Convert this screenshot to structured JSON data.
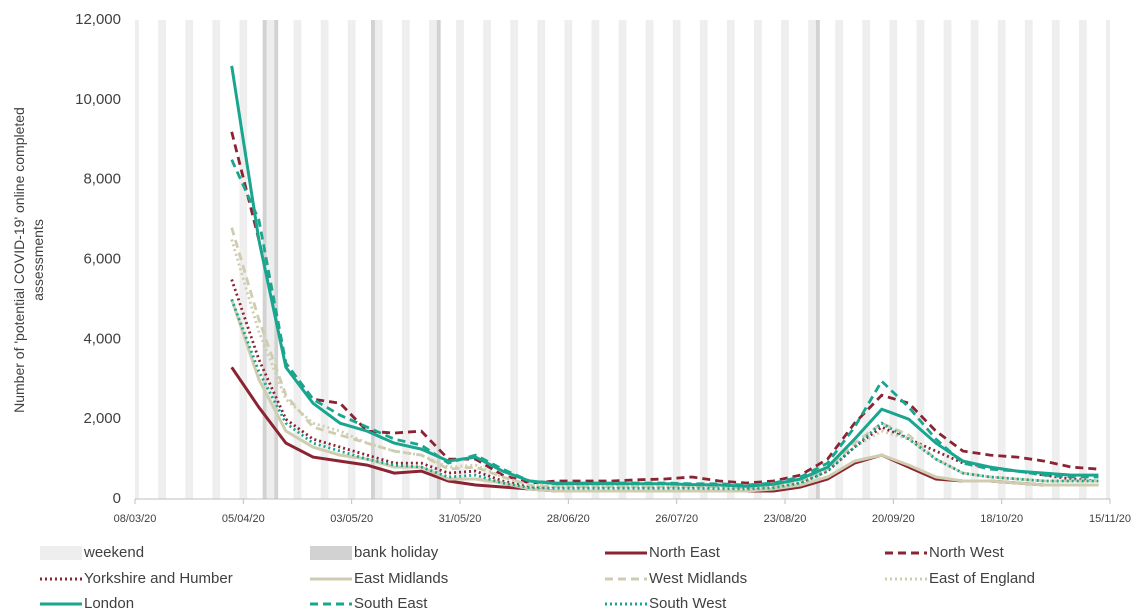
{
  "chart_data": {
    "type": "line",
    "y_label": "Number of 'potential COVID-19' online completed assessments",
    "xlim": [
      "08/03/20",
      "15/11/20"
    ],
    "xticks": [
      "08/03/20",
      "05/04/20",
      "03/05/20",
      "31/05/20",
      "28/06/20",
      "26/07/20",
      "23/08/20",
      "20/09/20",
      "18/10/20",
      "15/11/20"
    ],
    "ylim": [
      0,
      12000
    ],
    "yticks": [
      0,
      {
        "value": 2000,
        "label": "2,000"
      },
      {
        "value": 4000,
        "label": "4,000"
      },
      {
        "value": 6000,
        "label": "6,000"
      },
      {
        "value": 8000,
        "label": "8,000"
      },
      {
        "value": 10000,
        "label": "10,000"
      },
      {
        "value": 12000,
        "label": "12,000"
      }
    ],
    "shading": [
      {
        "name": "weekend",
        "color": "#eeeeee",
        "days": [
          6,
          0
        ]
      },
      {
        "name": "bank holiday",
        "color": "#d2d2d2",
        "dates": [
          "10/04/20",
          "13/04/20",
          "08/05/20",
          "25/05/20",
          "31/08/20"
        ]
      }
    ],
    "x": [
      "02/04/20",
      "09/04/20",
      "16/04/20",
      "23/04/20",
      "30/04/20",
      "07/05/20",
      "14/05/20",
      "21/05/20",
      "28/05/20",
      "04/06/20",
      "11/06/20",
      "18/06/20",
      "25/06/20",
      "02/07/20",
      "09/07/20",
      "16/07/20",
      "23/07/20",
      "30/07/20",
      "06/08/20",
      "13/08/20",
      "20/08/20",
      "27/08/20",
      "03/09/20",
      "10/09/20",
      "17/09/20",
      "24/09/20",
      "01/10/20",
      "08/10/20",
      "15/10/20",
      "22/10/20",
      "29/10/20",
      "05/11/20",
      "12/11/20"
    ],
    "series": [
      {
        "name": "North East",
        "color": "#8b2332",
        "dash": "solid",
        "values": [
          3300,
          2300,
          1400,
          1050,
          950,
          850,
          650,
          700,
          450,
          350,
          300,
          250,
          200,
          200,
          200,
          200,
          200,
          200,
          200,
          200,
          200,
          300,
          500,
          900,
          1100,
          800,
          500,
          450,
          450,
          400,
          350,
          350,
          350
        ]
      },
      {
        "name": "North West",
        "color": "#8b2332",
        "dash": "dashed",
        "values": [
          9200,
          6500,
          3400,
          2500,
          2400,
          1700,
          1650,
          1700,
          1000,
          1000,
          600,
          400,
          450,
          450,
          450,
          480,
          500,
          550,
          450,
          400,
          450,
          600,
          1000,
          1900,
          2600,
          2400,
          1700,
          1200,
          1100,
          1050,
          950,
          800,
          750
        ]
      },
      {
        "name": "Yorkshire and Humber",
        "color": "#8b2332",
        "dash": "dotted",
        "values": [
          5500,
          3500,
          2000,
          1500,
          1300,
          1100,
          900,
          900,
          650,
          700,
          450,
          300,
          300,
          300,
          300,
          300,
          300,
          300,
          300,
          280,
          300,
          400,
          700,
          1300,
          1800,
          1500,
          1200,
          900,
          800,
          700,
          600,
          500,
          450
        ]
      },
      {
        "name": "East Midlands",
        "color": "#cfcdb0",
        "dash": "solid",
        "values": [
          5000,
          3000,
          1700,
          1300,
          1100,
          1000,
          800,
          800,
          500,
          500,
          400,
          250,
          200,
          200,
          200,
          200,
          200,
          200,
          200,
          200,
          250,
          350,
          550,
          950,
          1100,
          850,
          550,
          450,
          450,
          400,
          350,
          350,
          350
        ]
      },
      {
        "name": "West Midlands",
        "color": "#cfcdb0",
        "dash": "dashed",
        "values": [
          6800,
          4500,
          2600,
          1800,
          1600,
          1400,
          1200,
          1100,
          750,
          800,
          550,
          350,
          300,
          300,
          300,
          300,
          300,
          300,
          300,
          280,
          320,
          450,
          750,
          1400,
          1900,
          1600,
          1000,
          650,
          550,
          500,
          450,
          450,
          450
        ]
      },
      {
        "name": "East of England",
        "color": "#cfcdb0",
        "dash": "dotted",
        "values": [
          6500,
          4200,
          2500,
          1900,
          1700,
          1400,
          1200,
          1100,
          800,
          850,
          550,
          350,
          320,
          320,
          320,
          320,
          320,
          320,
          300,
          300,
          330,
          450,
          750,
          1300,
          1700,
          1500,
          1000,
          650,
          550,
          500,
          450,
          450,
          450
        ]
      },
      {
        "name": "London",
        "color": "#1aa58f",
        "dash": "solid",
        "values": [
          10850,
          6500,
          3300,
          2400,
          1900,
          1700,
          1400,
          1250,
          950,
          1050,
          700,
          450,
          380,
          380,
          380,
          380,
          380,
          360,
          350,
          320,
          370,
          500,
          800,
          1500,
          2250,
          2000,
          1400,
          950,
          800,
          700,
          650,
          600,
          600
        ]
      },
      {
        "name": "South East",
        "color": "#1aa58f",
        "dash": "dashed",
        "values": [
          8500,
          7000,
          3400,
          2500,
          2100,
          1800,
          1500,
          1350,
          900,
          1100,
          750,
          450,
          400,
          400,
          400,
          400,
          400,
          380,
          380,
          350,
          400,
          550,
          900,
          1800,
          2950,
          2300,
          1500,
          900,
          750,
          700,
          600,
          550,
          550
        ]
      },
      {
        "name": "South West",
        "color": "#1aa58f",
        "dash": "dotted",
        "values": [
          5000,
          3200,
          1900,
          1400,
          1200,
          1000,
          850,
          800,
          550,
          600,
          400,
          280,
          270,
          270,
          270,
          270,
          270,
          270,
          260,
          250,
          280,
          400,
          700,
          1300,
          1900,
          1500,
          1000,
          650,
          550,
          500,
          450,
          450,
          450
        ]
      }
    ]
  }
}
